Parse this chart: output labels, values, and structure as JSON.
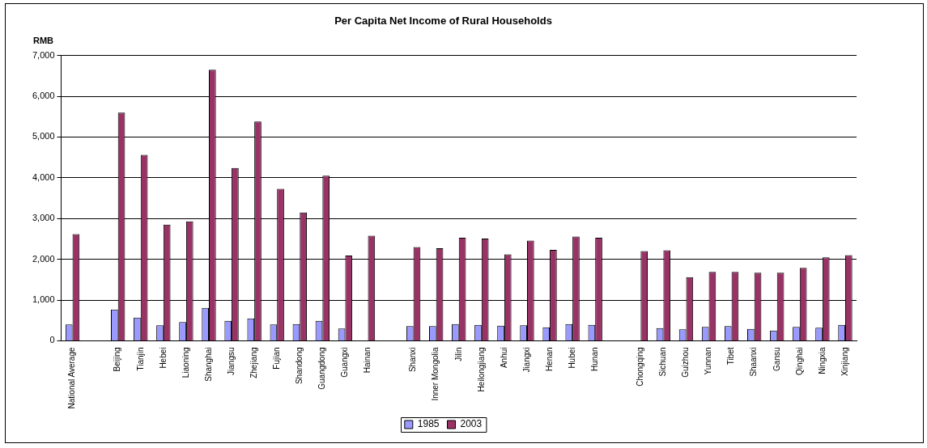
{
  "chart_data": {
    "type": "bar",
    "title": "Per Capita Net Income of Rural Households",
    "ylabel": "RMB",
    "categories": [
      "National Average",
      null,
      "Beijing",
      "Tianjin",
      "Hebei",
      "Liaoning",
      "Shanghai",
      "Jiangsu",
      "Zhejiang",
      "Fujian",
      "Shandong",
      "Guangdong",
      "Guangxi",
      "Hainan",
      null,
      "Shanxi",
      "Inner Mongolia",
      "Jilin",
      "Heilongjiang",
      "Anhui",
      "Jiangxi",
      "Henan",
      "Hubei",
      "Hunan",
      null,
      "Chongqing",
      "Sichuan",
      "Guizhou",
      "Yunnan",
      "Tibet",
      "Shaanxi",
      "Gansu",
      "Qinghai",
      "Ningxia",
      "Xinjiang"
    ],
    "series": [
      {
        "name": "1985",
        "color": "#9999ff",
        "values": [
          400,
          null,
          770,
          570,
          380,
          460,
          810,
          490,
          550,
          400,
          410,
          490,
          300,
          null,
          null,
          360,
          360,
          410,
          390,
          370,
          380,
          330,
          410,
          390,
          null,
          null,
          310,
          280,
          340,
          360,
          290,
          250,
          340,
          320,
          390
        ]
      },
      {
        "name": "2003",
        "color": "#993366",
        "values": [
          2620,
          null,
          5600,
          4560,
          2850,
          2930,
          6650,
          4240,
          5380,
          3730,
          3150,
          4050,
          2090,
          2580,
          null,
          2300,
          2270,
          2530,
          2510,
          2120,
          2460,
          2230,
          2560,
          2530,
          null,
          2200,
          2220,
          1560,
          1690,
          1690,
          1670,
          1670,
          1790,
          2050,
          2100
        ]
      }
    ],
    "ylim": [
      0,
      7000
    ],
    "yticks": [
      {
        "value": 0,
        "label": "0"
      },
      {
        "value": 1000,
        "label": "1,000"
      },
      {
        "value": 2000,
        "label": "2,000"
      },
      {
        "value": 3000,
        "label": "3,000"
      },
      {
        "value": 4000,
        "label": "4,000"
      },
      {
        "value": 5000,
        "label": "5,000"
      },
      {
        "value": 6000,
        "label": "6,000"
      },
      {
        "value": 7000,
        "label": "7,000"
      }
    ],
    "grid": "y",
    "legend": "bottom"
  }
}
